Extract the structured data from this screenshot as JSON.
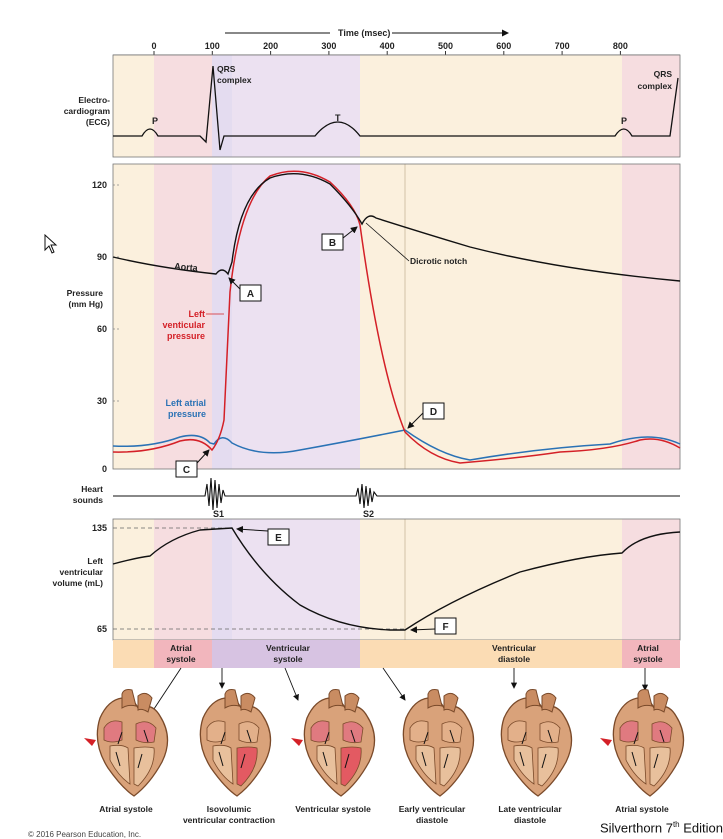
{
  "time_axis": {
    "title": "Time (msec)",
    "ticks": [
      "0",
      "100",
      "200",
      "300",
      "400",
      "500",
      "600",
      "700",
      "800"
    ]
  },
  "ecg": {
    "ylabel": [
      "Electro-",
      "cardiogram",
      "(ECG)"
    ],
    "labels": {
      "p1": "P",
      "qrs1": [
        "QRS",
        "complex"
      ],
      "t": "T",
      "p2": "P",
      "qrs2": [
        "QRS",
        "complex"
      ]
    }
  },
  "pressure": {
    "ylabel": [
      "Pressure",
      "(mm Hg)"
    ],
    "ticks": [
      "120",
      "90",
      "60",
      "30",
      "0"
    ],
    "aorta_label": "Aorta",
    "lv_label": [
      "Left",
      "venticular",
      "pressure"
    ],
    "la_label": [
      "Left atrial",
      "pressure"
    ],
    "dicrotic_label": "Dicrotic notch",
    "markers": {
      "a": "A",
      "b": "B",
      "c": "C",
      "d": "D"
    }
  },
  "heart_sounds": {
    "ylabel": [
      "Heart",
      "sounds"
    ],
    "s1": "S1",
    "s2": "S2"
  },
  "volume": {
    "ylabel": [
      "Left",
      "ventricular",
      "volume (mL)"
    ],
    "ticks": [
      "135",
      "65"
    ],
    "markers": {
      "e": "E",
      "f": "F"
    }
  },
  "phases": [
    {
      "label": [
        "Atrial",
        "systole"
      ]
    },
    {
      "label": [
        "Ventricular",
        "systole"
      ]
    },
    {
      "label": [
        "Ventricular",
        "diastole"
      ]
    },
    {
      "label": [
        "Atrial",
        "systole"
      ]
    }
  ],
  "hearts": [
    {
      "label": [
        "Atrial systole"
      ]
    },
    {
      "label": [
        "Isovolumic",
        "ventricular contraction"
      ]
    },
    {
      "label": [
        "Ventricular systole"
      ]
    },
    {
      "label": [
        "Early ventricular",
        "diastole"
      ]
    },
    {
      "label": [
        "Late ventricular",
        "diastole"
      ]
    },
    {
      "label": [
        "Atrial systole"
      ]
    }
  ],
  "credit": {
    "author": "Silverthorn 7",
    "sup": "th",
    "tail": " Edition"
  },
  "copyright": "© 2016 Pearson Education, Inc.",
  "colors": {
    "atrial_systole_bg": "#f6dde0",
    "isovolumic_bg": "#e4dcf0",
    "ventricular_systole_bg": "#ece1f1",
    "diastole_bg": "#fbf0dd",
    "lv_pressure": "#d42027",
    "aortic_pressure": "#1a1a1a",
    "la_pressure": "#2a72b5",
    "phase_atrial": "#f2b6bd",
    "phase_ventricular": "#d7c3e2",
    "phase_diastole": "#fbdcb4"
  },
  "icon_names": [
    "cursor-arrow-icon",
    "heart-illustration-icon"
  ]
}
